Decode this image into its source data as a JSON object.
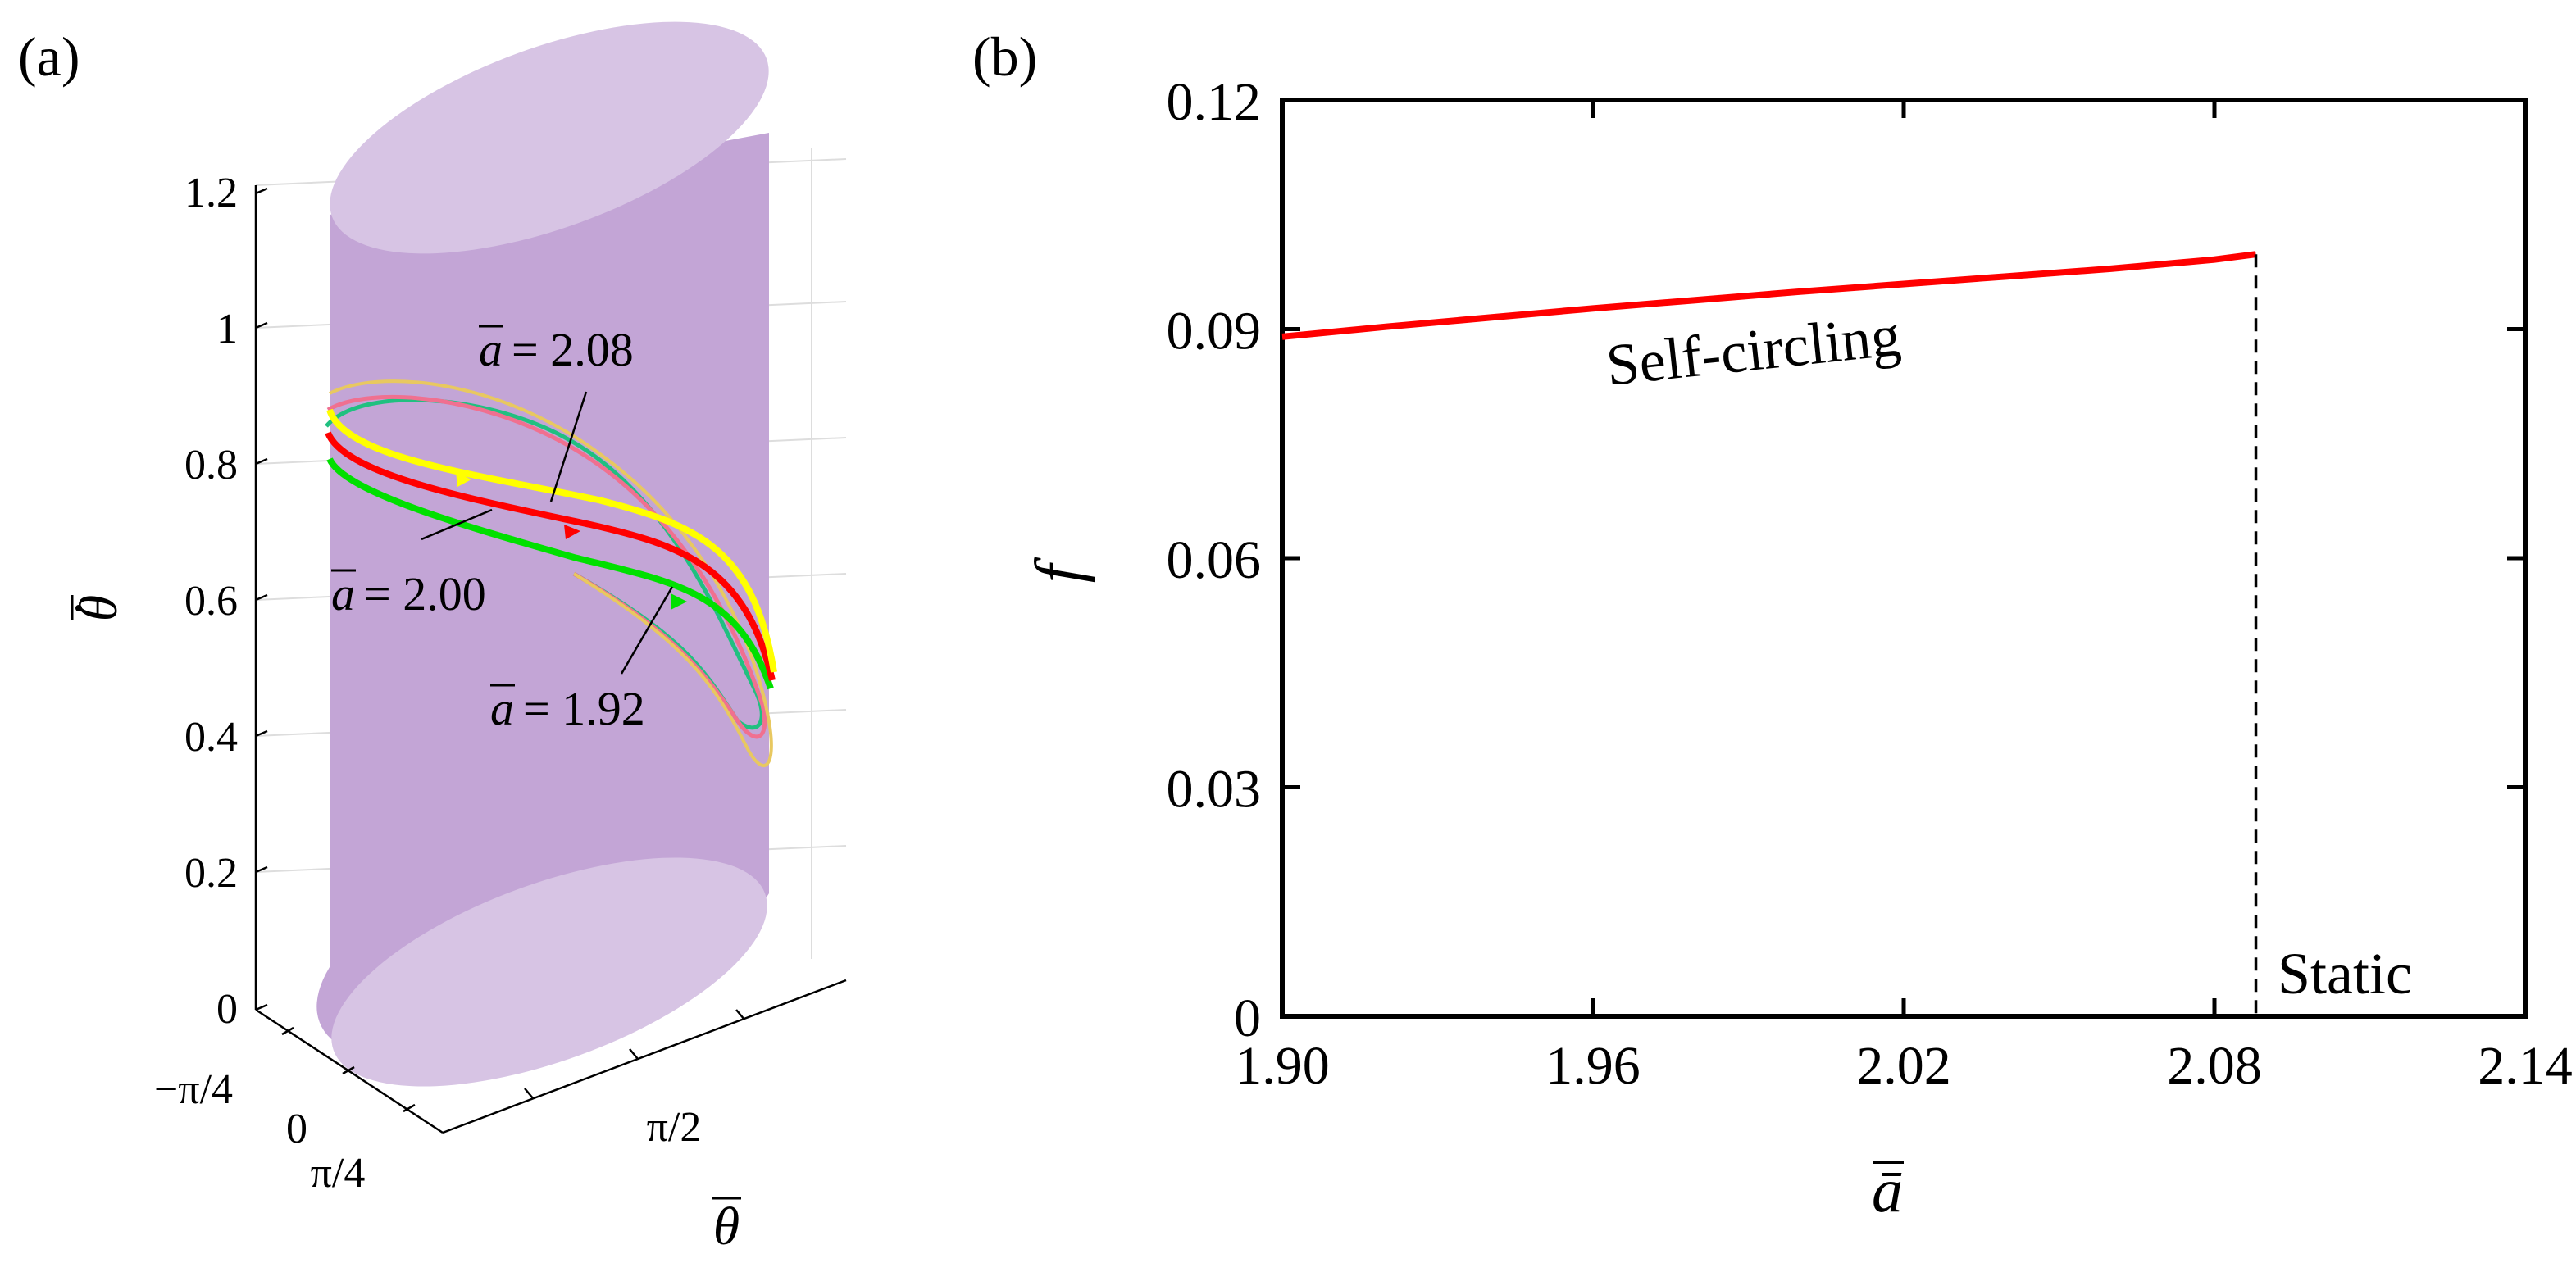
{
  "panel_a": {
    "label": "(a)",
    "z_ticks": [
      "0",
      "0.2",
      "0.4",
      "0.6",
      "0.8",
      "1",
      "1.2"
    ],
    "side_ticks": [
      "−π/4",
      "0",
      "π/4"
    ],
    "theta_ticks": [
      "π/2"
    ],
    "z_label": "θ̄̇",
    "z_label_base": "θ",
    "theta_label": "θ",
    "annotations": [
      {
        "abar": "a",
        "text": "= 2.08"
      },
      {
        "abar": "a",
        "text": "= 2.00"
      },
      {
        "abar": "a",
        "text": "= 1.92"
      }
    ],
    "colors": {
      "cylinder": "#c3a5d6",
      "cap": "#d7c4e4",
      "a192": "#00e000",
      "a200": "#ff0000",
      "a208": "#ffff00"
    }
  },
  "panel_b": {
    "label": "(b)",
    "self_circling_label": "Self-circling",
    "static_label": "Static",
    "colors": {
      "curve": "#ff0000",
      "axis": "#000000"
    }
  },
  "chart_data": [
    {
      "type": "line",
      "title": "",
      "xlabel": "ā",
      "ylabel": "f",
      "xlim": [
        1.9,
        2.14
      ],
      "ylim": [
        0,
        0.12
      ],
      "xticks": [
        "1.90",
        "1.96",
        "2.02",
        "2.08",
        "2.14"
      ],
      "yticks": [
        "0",
        "0.03",
        "0.06",
        "0.09",
        "0.12"
      ],
      "series": [
        {
          "name": "Self-circling frequency",
          "x": [
            1.9,
            1.92,
            1.94,
            1.96,
            1.98,
            2.0,
            2.02,
            2.04,
            2.06,
            2.08,
            2.088
          ],
          "y": [
            0.089,
            0.0903,
            0.0915,
            0.0927,
            0.0938,
            0.0949,
            0.0959,
            0.0969,
            0.0979,
            0.0991,
            0.0998
          ]
        }
      ],
      "threshold": {
        "x": 2.088,
        "style": "dashed"
      },
      "regions": [
        "Self-circling",
        "Static"
      ]
    },
    {
      "type": "line",
      "title": "",
      "description_axes": [
        "theta",
        "theta_dot"
      ],
      "zlim": [
        0,
        1.2
      ],
      "series": [
        {
          "name": "a = 1.92",
          "color": "#00e000"
        },
        {
          "name": "a = 2.00",
          "color": "#ff0000"
        },
        {
          "name": "a = 2.08",
          "color": "#ffff00"
        }
      ]
    }
  ]
}
